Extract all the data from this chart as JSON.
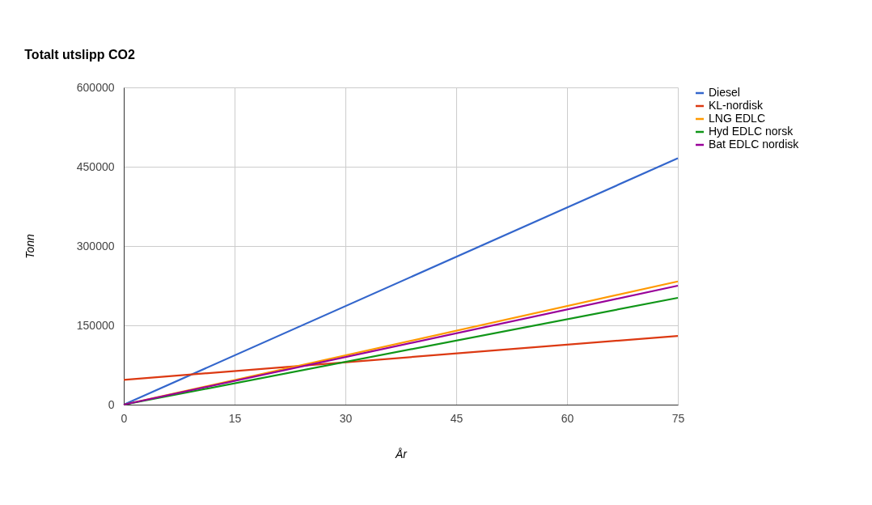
{
  "chart_data": {
    "type": "line",
    "title": "Totalt utslipp CO2",
    "xlabel": "År",
    "ylabel": "Tonn",
    "x": [
      0,
      75
    ],
    "series": [
      {
        "name": "Diesel",
        "color": "#3366cc",
        "values": [
          0,
          466000
        ]
      },
      {
        "name": "KL-nordisk",
        "color": "#dc3912",
        "values": [
          47000,
          130000
        ]
      },
      {
        "name": "LNG EDLC",
        "color": "#ff9900",
        "values": [
          0,
          233000
        ]
      },
      {
        "name": "Hyd EDLC norsk",
        "color": "#109618",
        "values": [
          0,
          202000
        ]
      },
      {
        "name": "Bat EDLC nordisk",
        "color": "#990099",
        "values": [
          0,
          225000
        ]
      }
    ],
    "xlim": [
      0,
      75
    ],
    "xticks": [
      0,
      15,
      30,
      45,
      60,
      75
    ],
    "ylim": [
      0,
      600000
    ],
    "yticks": [
      0,
      150000,
      300000,
      450000,
      600000
    ],
    "grid": true,
    "legend": "right",
    "marker": "none",
    "line_style": "solid"
  }
}
